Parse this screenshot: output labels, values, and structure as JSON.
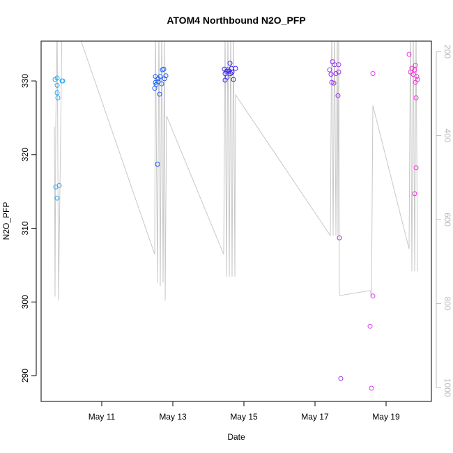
{
  "chart_data": {
    "type": "scatter",
    "title": "ATOM4 Northbound N2O_PFP",
    "xlabel": "Date",
    "ylabel": "N2O_PFP",
    "xlim": [
      "05-09 07:03",
      "05-20 06:36"
    ],
    "ylim": [
      286.5,
      335.4
    ],
    "y2lim": [
      175,
      1033
    ],
    "y2_reversed": true,
    "grid": false,
    "x_ticks": [
      {
        "label": "May 11",
        "t": "05-11 00:00"
      },
      {
        "label": "May 13",
        "t": "05-13 00:00"
      },
      {
        "label": "May 15",
        "t": "05-15 00:00"
      },
      {
        "label": "May 17",
        "t": "05-17 00:00"
      },
      {
        "label": "May 19",
        "t": "05-19 00:00"
      }
    ],
    "y_ticks": [
      "290",
      "300",
      "310",
      "320",
      "330"
    ],
    "y2_ticks": [
      "200",
      "400",
      "600",
      "800",
      "1000"
    ],
    "colors": {
      "profile_line": "#c8c8c8",
      "y2_axis": "#bbbbbb",
      "axis": "#000000"
    },
    "series": [
      {
        "color": "#2aa6f2",
        "points": [
          [
            "05-09 16:28",
            330.2
          ],
          [
            "05-09 17:53",
            330.4
          ],
          [
            "05-09 17:53",
            329.4
          ],
          [
            "05-09 21:11",
            330.0
          ],
          [
            "05-09 21:39",
            330.0
          ],
          [
            "05-09 17:53",
            328.4
          ],
          [
            "05-09 18:21",
            327.7
          ],
          [
            "05-09 16:56",
            315.6
          ],
          [
            "05-09 19:18",
            315.8
          ],
          [
            "05-09 17:53",
            314.1
          ]
        ]
      },
      {
        "color": "#1f5ef2",
        "points": [
          [
            "05-12 12:14",
            330.6
          ],
          [
            "05-12 14:07",
            330.3
          ],
          [
            "05-12 15:32",
            330.6
          ],
          [
            "05-12 16:56",
            331.5
          ],
          [
            "05-12 17:53",
            331.6
          ],
          [
            "05-12 19:17",
            330.7
          ],
          [
            "05-12 12:14",
            329.8
          ],
          [
            "05-12 12:43",
            329.5
          ],
          [
            "05-12 14:07",
            329.9
          ],
          [
            "05-12 16:28",
            329.6
          ],
          [
            "05-12 11:46",
            329.0
          ],
          [
            "05-12 18:21",
            330.3
          ],
          [
            "05-12 15:04",
            328.2
          ],
          [
            "05-12 13:39",
            318.7
          ]
        ]
      },
      {
        "color": "#3a22f0",
        "points": [
          [
            "05-14 14:35",
            332.4
          ],
          [
            "05-14 10:49",
            331.6
          ],
          [
            "05-14 13:11",
            331.5
          ],
          [
            "05-14 15:32",
            331.7
          ],
          [
            "05-14 18:21",
            331.7
          ],
          [
            "05-14 11:17",
            331.0
          ],
          [
            "05-14 16:00",
            331.2
          ],
          [
            "05-14 12:42",
            330.5
          ],
          [
            "05-14 11:17",
            330.1
          ],
          [
            "05-14 16:56",
            330.2
          ],
          [
            "05-14 14:07",
            331.3
          ],
          [
            "05-14 12:14",
            331.3
          ],
          [
            "05-14 15:04",
            331.0
          ]
        ]
      },
      {
        "color": "#9a30f7",
        "points": [
          [
            "05-17 11:46",
            332.6
          ],
          [
            "05-17 09:54",
            331.5
          ],
          [
            "05-17 13:11",
            332.2
          ],
          [
            "05-17 16:00",
            332.2
          ],
          [
            "05-17 10:49",
            330.9
          ],
          [
            "05-17 14:07",
            331.0
          ],
          [
            "05-17 16:00",
            331.2
          ],
          [
            "05-17 11:17",
            329.8
          ],
          [
            "05-17 12:42",
            329.7
          ],
          [
            "05-17 15:32",
            328.0
          ],
          [
            "05-17 16:28",
            308.7
          ],
          [
            "05-17 17:25",
            289.6
          ]
        ]
      },
      {
        "color": "#dd38f5",
        "points": [
          [
            "05-18 15:04",
            331.0
          ],
          [
            "05-18 15:04",
            300.8
          ],
          [
            "05-18 13:11",
            296.7
          ],
          [
            "05-18 14:07",
            288.3
          ]
        ]
      },
      {
        "color": "#f530d6",
        "points": [
          [
            "05-19 15:32",
            333.6
          ],
          [
            "05-19 17:25",
            331.7
          ],
          [
            "05-19 19:46",
            332.1
          ],
          [
            "05-19 16:28",
            331.2
          ],
          [
            "05-19 19:17",
            331.5
          ],
          [
            "05-19 18:21",
            330.9
          ],
          [
            "05-19 20:43",
            330.6
          ],
          [
            "05-19 21:11",
            330.2
          ],
          [
            "05-19 19:46",
            329.8
          ],
          [
            "05-19 20:14",
            327.7
          ],
          [
            "05-19 20:14",
            318.2
          ],
          [
            "05-19 19:17",
            314.7
          ]
        ]
      }
    ],
    "profile_line_y2": [
      [
        "05-09 16:00",
        379
      ],
      [
        "05-09 16:28",
        783
      ],
      [
        "05-09 16:56",
        379
      ],
      [
        "05-09 17:53",
        130
      ],
      [
        "05-09 18:49",
        793
      ],
      [
        "05-09 21:11",
        130
      ],
      [
        "05-10 05:39",
        130
      ],
      [
        "05-12 11:46",
        683
      ],
      [
        "05-12 12:14",
        130
      ],
      [
        "05-12 13:39",
        750
      ],
      [
        "05-12 14:35",
        130
      ],
      [
        "05-12 15:32",
        758
      ],
      [
        "05-12 16:28",
        130
      ],
      [
        "05-12 17:25",
        750
      ],
      [
        "05-12 18:21",
        130
      ],
      [
        "05-12 18:49",
        793
      ],
      [
        "05-12 19:46",
        353
      ],
      [
        "05-14 10:21",
        683
      ],
      [
        "05-14 11:17",
        130
      ],
      [
        "05-14 12:14",
        736
      ],
      [
        "05-14 13:11",
        130
      ],
      [
        "05-14 14:07",
        736
      ],
      [
        "05-14 15:04",
        130
      ],
      [
        "05-14 16:00",
        736
      ],
      [
        "05-14 16:56",
        130
      ],
      [
        "05-14 17:53",
        736
      ],
      [
        "05-14 18:21",
        303
      ],
      [
        "05-17 10:21",
        638
      ],
      [
        "05-17 11:17",
        130
      ],
      [
        "05-17 12:14",
        638
      ],
      [
        "05-17 13:11",
        130
      ],
      [
        "05-17 14:07",
        638
      ],
      [
        "05-17 15:04",
        130
      ],
      [
        "05-17 15:32",
        638
      ],
      [
        "05-17 16:00",
        130
      ],
      [
        "05-17 16:28",
        781
      ],
      [
        "05-18 13:11",
        769
      ],
      [
        "05-18 14:07",
        783
      ],
      [
        "05-18 15:04",
        328
      ],
      [
        "05-19 15:32",
        670
      ],
      [
        "05-19 16:28",
        130
      ],
      [
        "05-19 17:25",
        723
      ],
      [
        "05-19 18:21",
        130
      ],
      [
        "05-19 19:17",
        723
      ],
      [
        "05-19 20:14",
        130
      ],
      [
        "05-19 21:11",
        723
      ]
    ]
  }
}
